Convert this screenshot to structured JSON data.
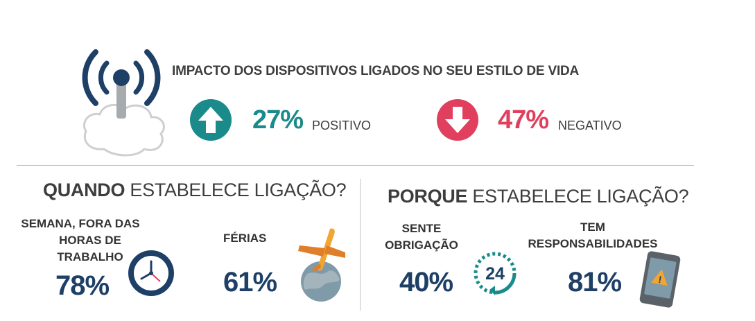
{
  "header": {
    "title": "IMPACTO DOS DISPOSITIVOS LIGADOS NO SEU ESTILO DE VIDA",
    "positive": {
      "value": "27%",
      "label": "POSITIVO",
      "color": "#1a8a8a",
      "icon": "arrow-up-icon"
    },
    "negative": {
      "value": "47%",
      "label": "NEGATIVO",
      "color": "#e0405e",
      "icon": "arrow-down-icon"
    }
  },
  "when": {
    "title_bold": "QUANDO",
    "title_rest": " ESTABELECE LIGAÇÃO?",
    "items": [
      {
        "lines": [
          "SEMANA, FORA DAS",
          "HORAS DE",
          "TRABALHO"
        ],
        "value": "78%",
        "icon": "clock-icon"
      },
      {
        "lines": [
          "FÉRIAS"
        ],
        "value": "61%",
        "icon": "airplane-globe-icon"
      }
    ]
  },
  "why": {
    "title_bold": "PORQUE",
    "title_rest": " ESTABELECE LIGAÇÃO?",
    "items": [
      {
        "lines": [
          "SENTE",
          "OBRIGAÇÃO"
        ],
        "value": "40%",
        "icon": "24-hours-icon",
        "icon_text": "24"
      },
      {
        "lines": [
          "TEM",
          "RESPONSABILIDADES"
        ],
        "value": "81%",
        "icon": "phone-warning-icon",
        "icon_text": "!"
      }
    ]
  }
}
